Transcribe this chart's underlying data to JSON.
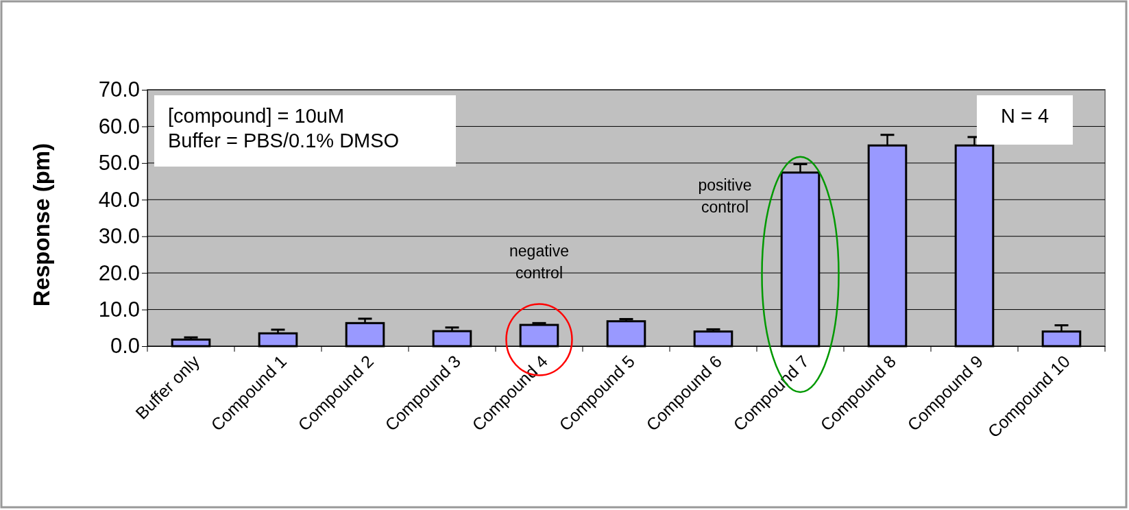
{
  "chart_data": {
    "type": "bar",
    "ylabel": "Response (pm)",
    "categories": [
      "Buffer only",
      "Compound 1",
      "Compound 2",
      "Compound 3",
      "Compound 4",
      "Compound 5",
      "Compound 6",
      "Compound 7",
      "Compound 8",
      "Compound 9",
      "Compound 10"
    ],
    "values": [
      1.8,
      3.5,
      6.3,
      4.1,
      5.8,
      6.8,
      4.0,
      47.4,
      54.8,
      54.8,
      4.0
    ],
    "errors": [
      0.6,
      1.0,
      1.2,
      1.0,
      0.5,
      0.6,
      0.6,
      2.3,
      2.9,
      2.3,
      1.7
    ],
    "color": "#9999ff",
    "ylim": [
      0,
      70
    ],
    "yticks": [
      {
        "value": 0,
        "label": "0.0"
      },
      {
        "value": 10,
        "label": "10.0"
      },
      {
        "value": 20,
        "label": "20.0"
      },
      {
        "value": 30,
        "label": "30.0"
      },
      {
        "value": 40,
        "label": "40.0"
      },
      {
        "value": 50,
        "label": "50.0"
      },
      {
        "value": 60,
        "label": "60.0"
      },
      {
        "value": 70,
        "label": "70.0"
      }
    ],
    "grid": "y",
    "annotations": [
      "[compound] = 10uM\nBuffer = PBS/0.1% DMSO",
      "N = 4",
      "negative\ncontrol",
      "positive\ncontrol"
    ]
  }
}
